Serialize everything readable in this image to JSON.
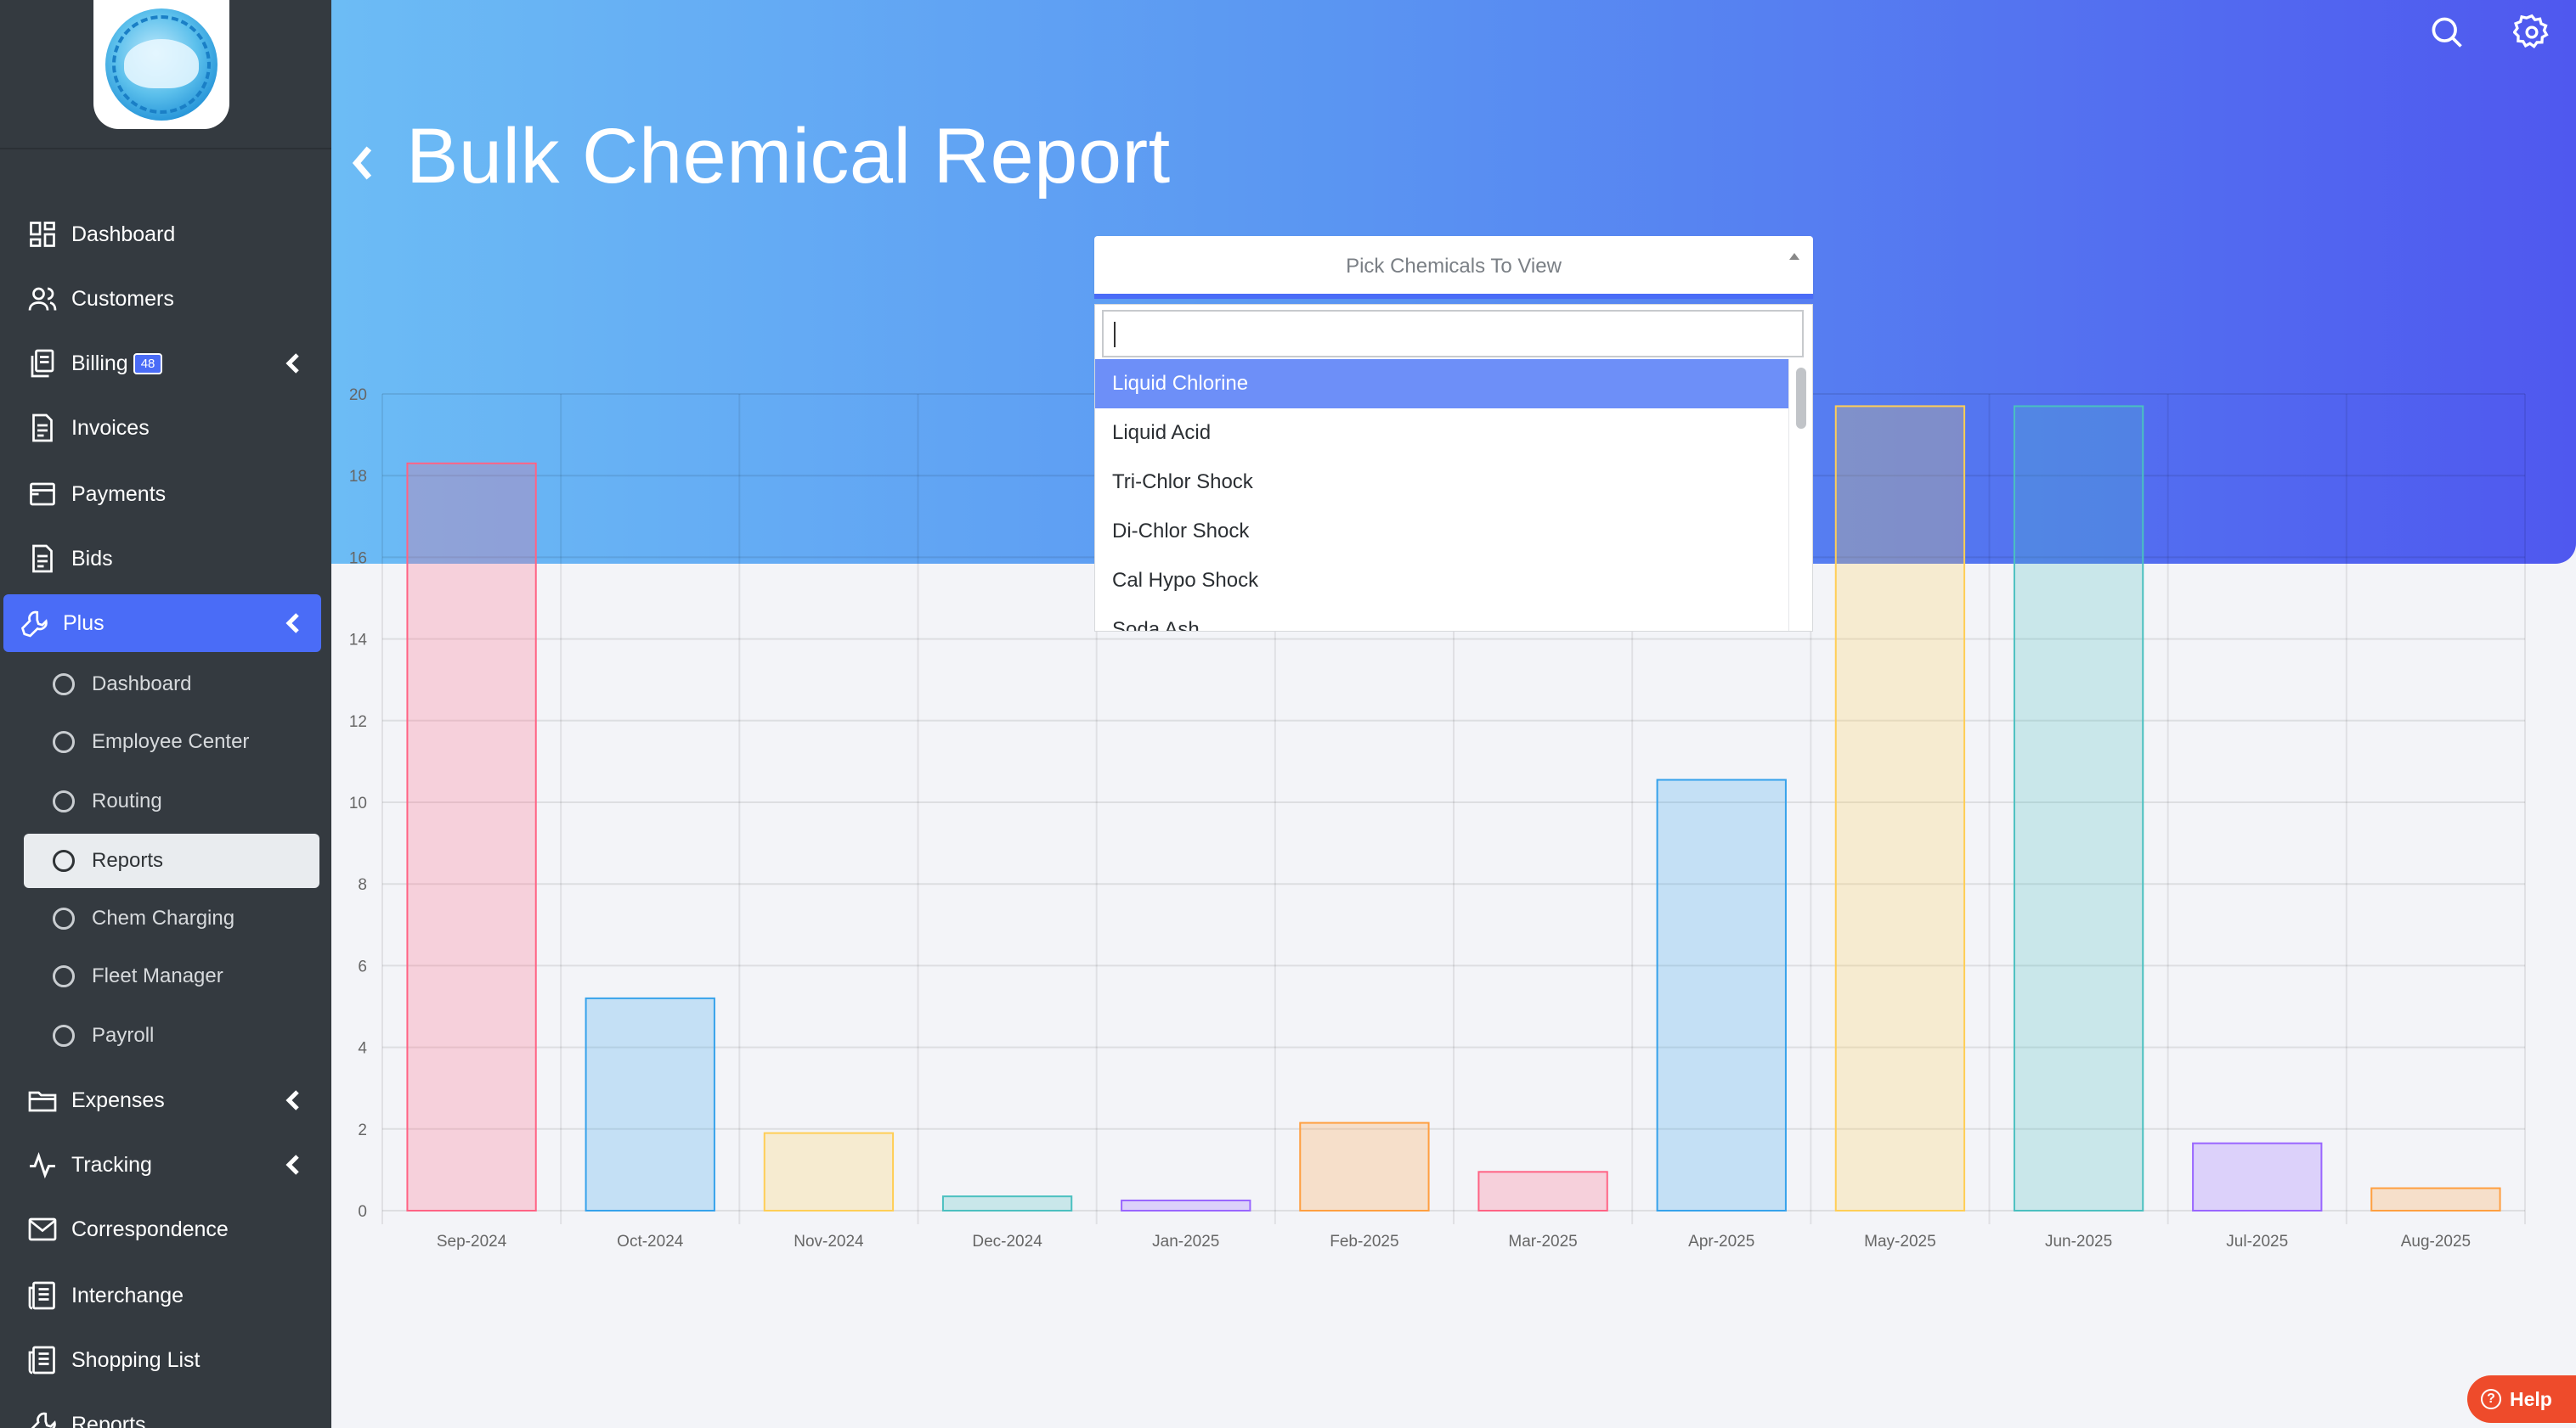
{
  "sidebar": {
    "logo_alt": "PAYTHEPOOLMAN",
    "items": [
      {
        "label": "Dashboard",
        "icon": "dashboard-icon"
      },
      {
        "label": "Customers",
        "icon": "users-icon"
      },
      {
        "label": "Billing",
        "icon": "billing-icon",
        "badge": "48"
      },
      {
        "label": "Invoices",
        "icon": "invoice-icon"
      },
      {
        "label": "Payments",
        "icon": "payments-icon"
      },
      {
        "label": "Bids",
        "icon": "bids-icon"
      },
      {
        "label": "Plus",
        "icon": "wrench-icon"
      },
      {
        "label": "Expenses",
        "icon": "folder-icon"
      },
      {
        "label": "Tracking",
        "icon": "activity-icon"
      },
      {
        "label": "Correspondence",
        "icon": "mail-icon"
      },
      {
        "label": "Interchange",
        "icon": "news-icon"
      },
      {
        "label": "Shopping List",
        "icon": "list-icon"
      },
      {
        "label": "Reports",
        "icon": "reports-icon"
      }
    ],
    "sub_items": [
      {
        "label": "Dashboard"
      },
      {
        "label": "Employee Center"
      },
      {
        "label": "Routing"
      },
      {
        "label": "Reports"
      },
      {
        "label": "Chem Charging"
      },
      {
        "label": "Fleet Manager"
      },
      {
        "label": "Payroll"
      }
    ]
  },
  "header": {
    "title": "Bulk Chemical Report",
    "icons": [
      "search-icon",
      "gear-icon"
    ],
    "gradient_start": "#6cbcf5",
    "gradient_end": "#4f58ef"
  },
  "picker": {
    "placeholder": "Pick Chemicals To View",
    "search_value": "",
    "options": [
      "Liquid Chlorine",
      "Liquid Acid",
      "Tri-Chlor Shock",
      "Di-Chlor Shock",
      "Cal Hypo Shock",
      "Soda Ash"
    ],
    "highlighted": "Liquid Chlorine"
  },
  "chart_data": {
    "type": "bar",
    "categories": [
      "Sep-2024",
      "Oct-2024",
      "Nov-2024",
      "Dec-2024",
      "Jan-2025",
      "Feb-2025",
      "Mar-2025",
      "Apr-2025",
      "May-2025",
      "Jun-2025",
      "Jul-2025",
      "Aug-2025"
    ],
    "values": [
      18.3,
      5.2,
      1.9,
      0.35,
      0.25,
      2.15,
      0.95,
      10.55,
      19.7,
      19.7,
      1.65,
      0.55
    ],
    "colors": [
      "#ff6384",
      "#36a2eb",
      "#ffce56",
      "#4bc0c0",
      "#9966ff",
      "#ff9f40",
      "#ff6384",
      "#36a2eb",
      "#ffce56",
      "#4bc0c0",
      "#9966ff",
      "#ff9f40"
    ],
    "yticks": [
      "0",
      "2",
      "4",
      "6",
      "8",
      "10",
      "12",
      "14",
      "16",
      "18",
      "20"
    ],
    "ylim": [
      0,
      20
    ],
    "grid": true,
    "title": "",
    "xlabel": "",
    "ylabel": ""
  },
  "help": {
    "label": "Help"
  }
}
